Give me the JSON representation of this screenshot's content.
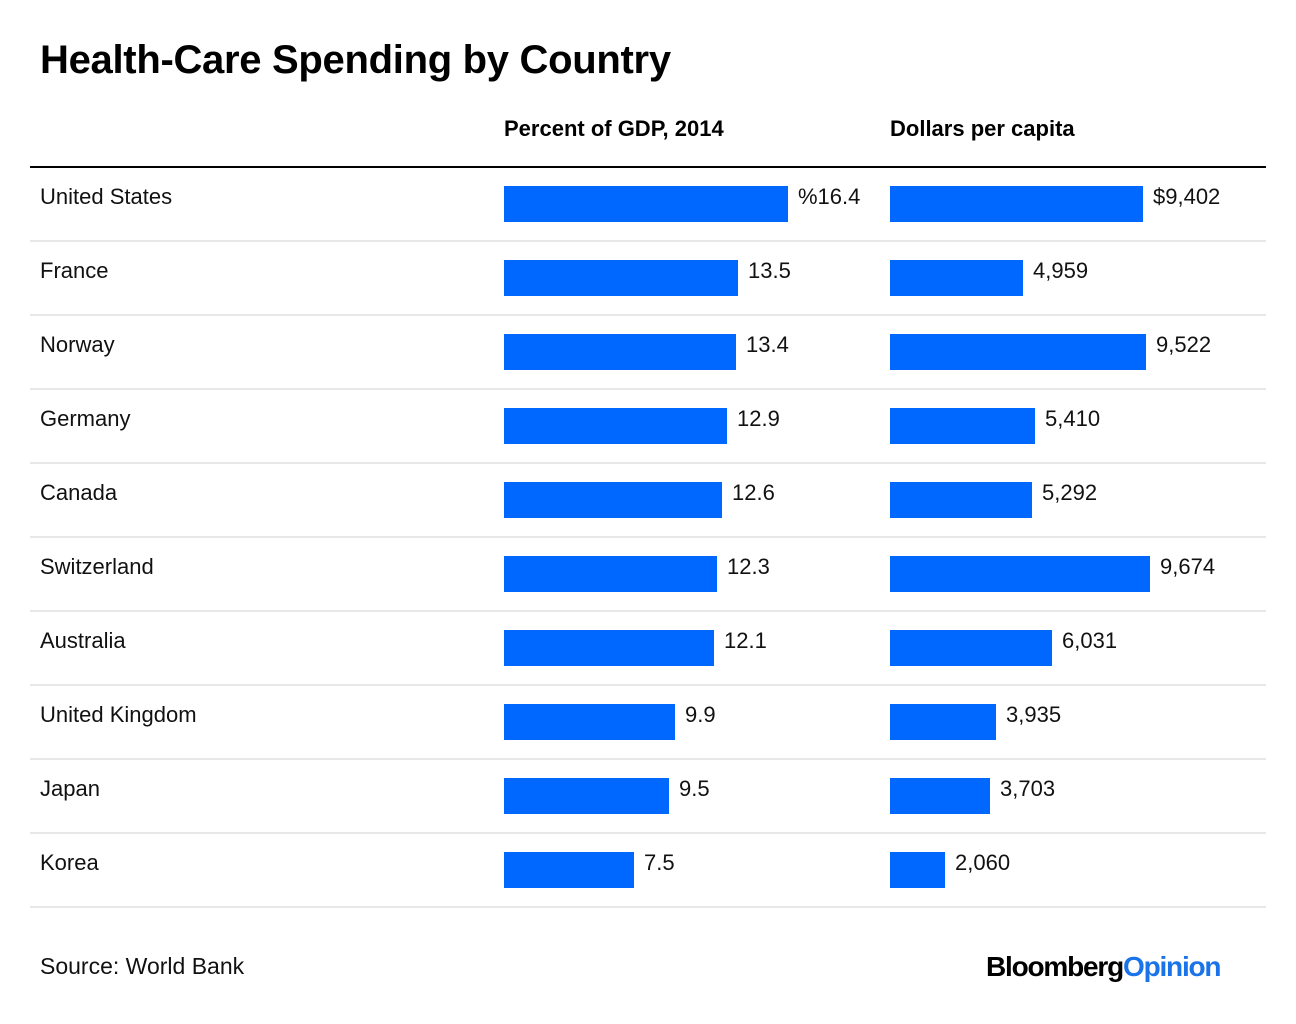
{
  "title": "Health-Care Spending by Country",
  "columns": {
    "gdp_header": "Percent of GDP, 2014",
    "usd_header": "Dollars per capita"
  },
  "source": "Source: World Bank",
  "logo": {
    "primary": "Bloomberg",
    "secondary": "Opinion"
  },
  "colors": {
    "bar": "#0068ff",
    "logo_accent": "#1a73e8"
  },
  "chart_data": {
    "type": "bar",
    "orientation": "horizontal",
    "title": "Health-Care Spending by Country",
    "categories": [
      "United States",
      "France",
      "Norway",
      "Germany",
      "Canada",
      "Switzerland",
      "Australia",
      "United Kingdom",
      "Japan",
      "Korea"
    ],
    "series": [
      {
        "name": "Percent of GDP, 2014",
        "values": [
          16.4,
          13.5,
          13.4,
          12.9,
          12.6,
          12.3,
          12.1,
          9.9,
          9.5,
          7.5
        ],
        "labels": [
          "%16.4",
          "13.5",
          "13.4",
          "12.9",
          "12.6",
          "12.3",
          "12.1",
          "9.9",
          "9.5",
          "7.5"
        ],
        "xlim": [
          0,
          16.4
        ]
      },
      {
        "name": "Dollars per capita",
        "values": [
          9402,
          4959,
          9522,
          5410,
          5292,
          9674,
          6031,
          3935,
          3703,
          2060
        ],
        "labels": [
          "$9,402",
          "4,959",
          "9,522",
          "5,410",
          "5,292",
          "9,674",
          "6,031",
          "3,935",
          "3,703",
          "2,060"
        ],
        "xlim": [
          0,
          9674
        ]
      }
    ],
    "source": "World Bank",
    "grid": false,
    "legend": "none"
  }
}
